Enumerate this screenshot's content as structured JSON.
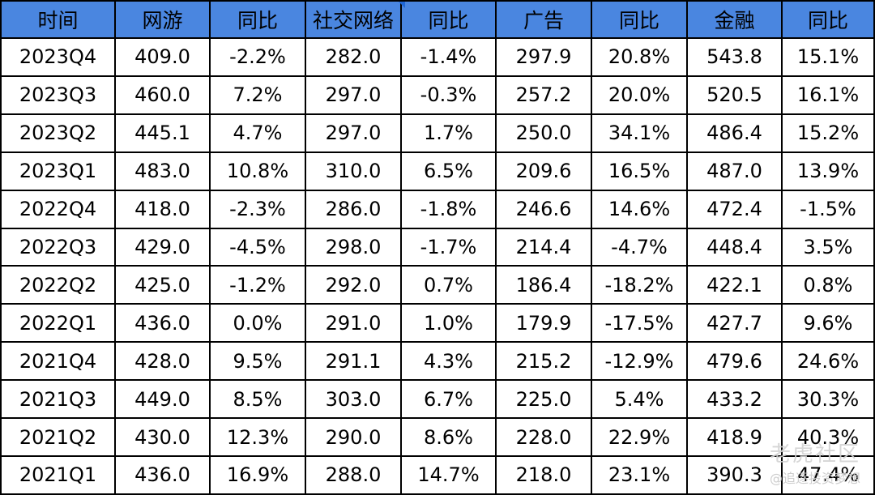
{
  "table": {
    "headers": [
      "时间",
      "网游",
      "同比",
      "社交网络",
      "同比",
      "广告",
      "同比",
      "金融",
      "同比"
    ],
    "rows": [
      [
        "2023Q4",
        "409.0",
        "-2.2%",
        "282.0",
        "-1.4%",
        "297.9",
        "20.8%",
        "543.8",
        "15.1%"
      ],
      [
        "2023Q3",
        "460.0",
        "7.2%",
        "297.0",
        "-0.3%",
        "257.2",
        "20.0%",
        "520.5",
        "16.1%"
      ],
      [
        "2023Q2",
        "445.1",
        "4.7%",
        "297.0",
        "1.7%",
        "250.0",
        "34.1%",
        "486.4",
        "15.2%"
      ],
      [
        "2023Q1",
        "483.0",
        "10.8%",
        "310.0",
        "6.5%",
        "209.6",
        "16.5%",
        "487.0",
        "13.9%"
      ],
      [
        "2022Q4",
        "418.0",
        "-2.3%",
        "286.0",
        "-1.8%",
        "246.6",
        "14.6%",
        "472.4",
        "-1.5%"
      ],
      [
        "2022Q3",
        "429.0",
        "-4.5%",
        "298.0",
        "-1.7%",
        "214.4",
        "-4.7%",
        "448.4",
        "3.5%"
      ],
      [
        "2022Q2",
        "425.0",
        "-1.2%",
        "292.0",
        "0.7%",
        "186.4",
        "-18.2%",
        "422.1",
        "0.8%"
      ],
      [
        "2022Q1",
        "436.0",
        "0.0%",
        "291.0",
        "1.0%",
        "179.9",
        "-17.5%",
        "427.7",
        "9.6%"
      ],
      [
        "2021Q4",
        "428.0",
        "9.5%",
        "291.1",
        "4.3%",
        "215.2",
        "-12.9%",
        "479.6",
        "24.6%"
      ],
      [
        "2021Q3",
        "449.0",
        "8.5%",
        "303.0",
        "6.7%",
        "225.0",
        "5.4%",
        "433.2",
        "30.3%"
      ],
      [
        "2021Q2",
        "430.0",
        "12.3%",
        "290.0",
        "8.6%",
        "228.0",
        "22.9%",
        "418.9",
        "40.3%"
      ],
      [
        "2021Q1",
        "436.0",
        "16.9%",
        "288.0",
        "14.7%",
        "218.0",
        "23.1%",
        "390.3",
        "47.4%"
      ]
    ]
  },
  "watermark": {
    "line1": "老虎社区",
    "line2": "@追逐投资梦想"
  },
  "colors": {
    "header_bg": "#4a86e0",
    "border": "#000000",
    "marker": "#1e66d6"
  }
}
